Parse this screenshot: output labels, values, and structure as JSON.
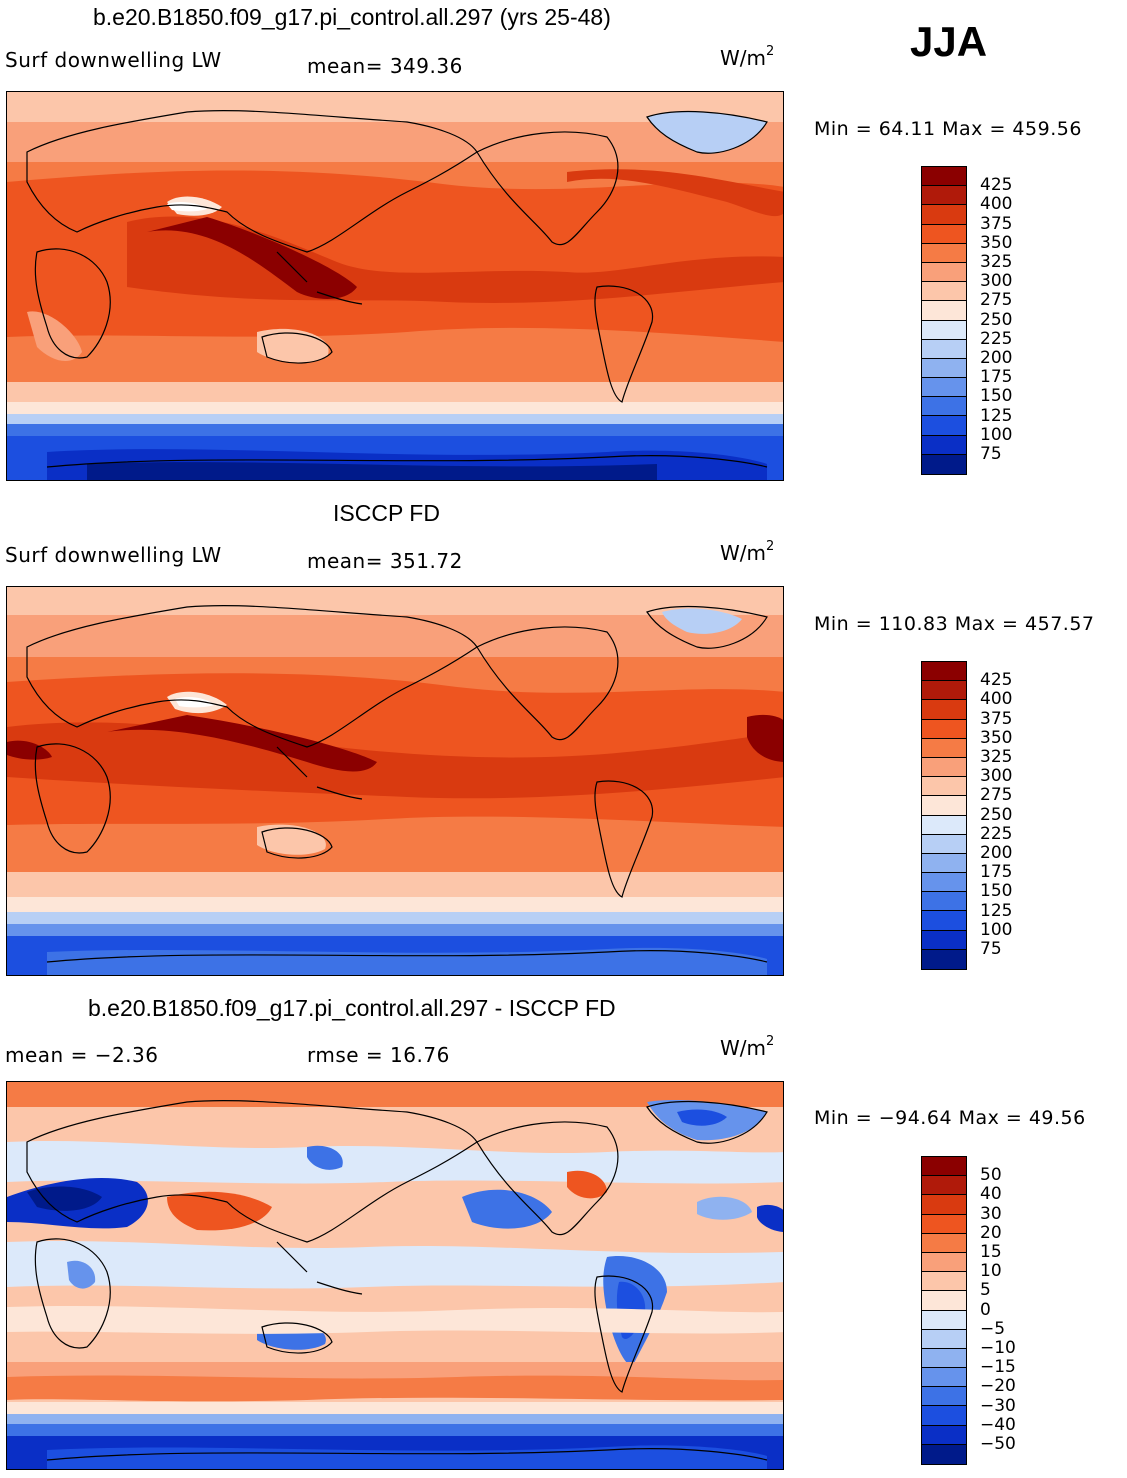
{
  "season": "JJA",
  "panels": [
    {
      "id": "model",
      "title": "b.e20.B1850.f09_g17.pi_control.all.297 (yrs 25-48)",
      "left_label": "Surf downwelling LW",
      "stat_label": "mean= 349.36",
      "units": "W/m",
      "units_sup": "2",
      "minmax": "Min =  64.11 Max = 459.56",
      "colorbar_ticks": [
        "425",
        "400",
        "375",
        "350",
        "325",
        "300",
        "275",
        "250",
        "225",
        "200",
        "175",
        "150",
        "125",
        "100",
        "75"
      ],
      "colorbar_colors": [
        "#8b0000",
        "#b01a0a",
        "#d93a10",
        "#ee5520",
        "#f57b45",
        "#f9a07a",
        "#fcc6aa",
        "#fde6d8",
        "#dce9fa",
        "#b7cff5",
        "#8fb2f0",
        "#6693ec",
        "#3d72e6",
        "#1c4fe0",
        "#0a2fc6",
        "#001a8a"
      ]
    },
    {
      "id": "obs",
      "title": "ISCCP FD",
      "left_label": "Surf downwelling LW",
      "stat_label": "mean= 351.72",
      "units": "W/m",
      "units_sup": "2",
      "minmax": "Min = 110.83 Max = 457.57",
      "colorbar_ticks": [
        "425",
        "400",
        "375",
        "350",
        "325",
        "300",
        "275",
        "250",
        "225",
        "200",
        "175",
        "150",
        "125",
        "100",
        "75"
      ],
      "colorbar_colors": [
        "#8b0000",
        "#b01a0a",
        "#d93a10",
        "#ee5520",
        "#f57b45",
        "#f9a07a",
        "#fcc6aa",
        "#fde6d8",
        "#dce9fa",
        "#b7cff5",
        "#8fb2f0",
        "#6693ec",
        "#3d72e6",
        "#1c4fe0",
        "#0a2fc6",
        "#001a8a"
      ]
    },
    {
      "id": "diff",
      "title": "b.e20.B1850.f09_g17.pi_control.all.297 - ISCCP FD",
      "left_label": "mean =   −2.36",
      "stat_label": "rmse =   16.76",
      "units": "W/m",
      "units_sup": "2",
      "minmax": "Min = −94.64 Max =  49.56",
      "colorbar_ticks": [
        "50",
        "40",
        "30",
        "20",
        "15",
        "10",
        "5",
        "0",
        "−5",
        "−10",
        "−15",
        "−20",
        "−30",
        "−40",
        "−50"
      ],
      "colorbar_colors": [
        "#8b0000",
        "#b01a0a",
        "#d93a10",
        "#ee5520",
        "#f57b45",
        "#f9a07a",
        "#fcc6aa",
        "#fde6d8",
        "#dce9fa",
        "#b7cff5",
        "#8fb2f0",
        "#6693ec",
        "#3d72e6",
        "#1c4fe0",
        "#0a2fc6",
        "#001a8a"
      ]
    }
  ]
}
